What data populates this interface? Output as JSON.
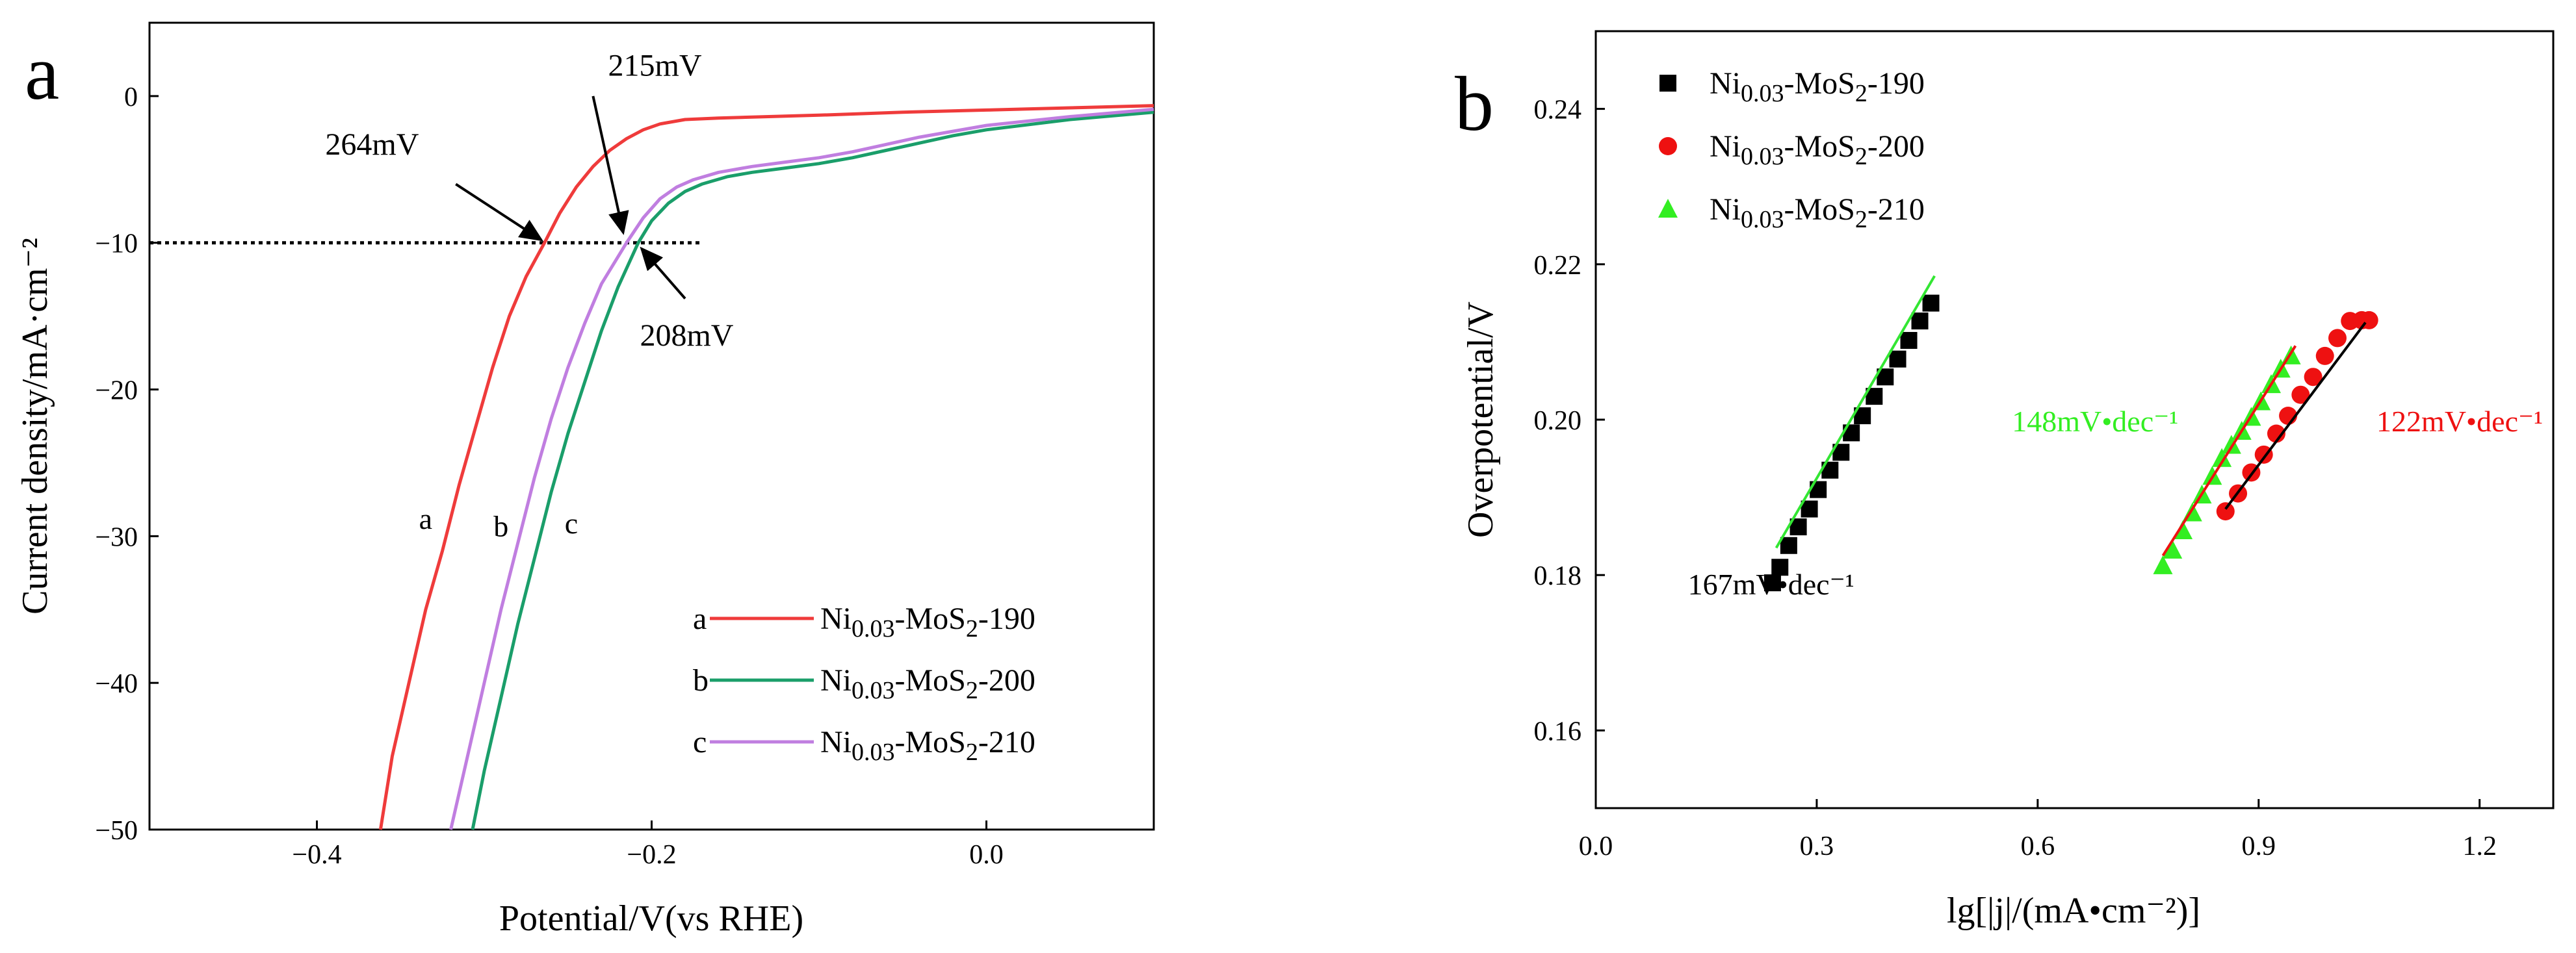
{
  "chart_data": [
    {
      "panel_label": "a",
      "type": "line",
      "xlabel": "Potential/V(vs RHE)",
      "ylabel": "Current density/mA·cm⁻²",
      "xlim": [
        -0.5,
        0.1
      ],
      "ylim": [
        -50,
        5
      ],
      "xticks": [
        {
          "value": -0.4,
          "label": "−0.4"
        },
        {
          "value": -0.2,
          "label": "−0.2"
        },
        {
          "value": 0.0,
          "label": "0.0"
        }
      ],
      "yticks": [
        {
          "value": 0,
          "label": "0"
        },
        {
          "value": -10,
          "label": "−10"
        },
        {
          "value": -20,
          "label": "−20"
        },
        {
          "value": -30,
          "label": "−30"
        },
        {
          "value": -40,
          "label": "−40"
        },
        {
          "value": -50,
          "label": "−50"
        }
      ],
      "reference_line": {
        "y": -10,
        "x_from": -0.5,
        "x_to": -0.17,
        "style": "dotted"
      },
      "series": [
        {
          "key": "a",
          "name_base": "Ni",
          "name_sub": "0.03",
          "name_rest": "-MoS",
          "name_sub2": "2",
          "name_tail": "-190",
          "color": "#ef3b3b",
          "x": [
            -0.362,
            -0.355,
            -0.345,
            -0.335,
            -0.325,
            -0.315,
            -0.305,
            -0.295,
            -0.285,
            -0.275,
            -0.264,
            -0.255,
            -0.245,
            -0.235,
            -0.225,
            -0.215,
            -0.205,
            -0.195,
            -0.18,
            -0.16,
            -0.13,
            -0.1,
            -0.05,
            0.0,
            0.05,
            0.1
          ],
          "y": [
            -50,
            -45,
            -40,
            -35,
            -31,
            -26.5,
            -22.5,
            -18.5,
            -15,
            -12.3,
            -10,
            -8,
            -6.2,
            -4.8,
            -3.7,
            -2.9,
            -2.3,
            -1.9,
            -1.6,
            -1.5,
            -1.4,
            -1.3,
            -1.1,
            -0.95,
            -0.8,
            -0.65
          ]
        },
        {
          "key": "b",
          "name_base": "Ni",
          "name_sub": "0.03",
          "name_rest": "-MoS",
          "name_sub2": "2",
          "name_tail": "-200",
          "color": "#1a9e6a",
          "x": [
            -0.307,
            -0.3,
            -0.29,
            -0.28,
            -0.27,
            -0.26,
            -0.25,
            -0.24,
            -0.23,
            -0.22,
            -0.208,
            -0.2,
            -0.19,
            -0.18,
            -0.17,
            -0.155,
            -0.14,
            -0.12,
            -0.1,
            -0.08,
            -0.06,
            -0.04,
            -0.02,
            0.0,
            0.05,
            0.1
          ],
          "y": [
            -50,
            -46,
            -41,
            -36,
            -31.5,
            -27,
            -23,
            -19.5,
            -16,
            -13,
            -10,
            -8.5,
            -7.3,
            -6.5,
            -6,
            -5.5,
            -5.2,
            -4.9,
            -4.6,
            -4.2,
            -3.7,
            -3.2,
            -2.7,
            -2.3,
            -1.6,
            -1.1
          ]
        },
        {
          "key": "c",
          "name_base": "Ni",
          "name_sub": "0.03",
          "name_rest": "-MoS",
          "name_sub2": "2",
          "name_tail": "-210",
          "color": "#c07ee0",
          "x": [
            -0.32,
            -0.31,
            -0.3,
            -0.29,
            -0.28,
            -0.27,
            -0.26,
            -0.25,
            -0.24,
            -0.23,
            -0.215,
            -0.205,
            -0.195,
            -0.185,
            -0.175,
            -0.16,
            -0.14,
            -0.12,
            -0.1,
            -0.08,
            -0.06,
            -0.04,
            -0.02,
            0.0,
            0.05,
            0.1
          ],
          "y": [
            -50,
            -45,
            -40,
            -35,
            -30.5,
            -26,
            -22,
            -18.5,
            -15.5,
            -12.8,
            -10,
            -8.3,
            -7,
            -6.2,
            -5.7,
            -5.2,
            -4.8,
            -4.5,
            -4.2,
            -3.8,
            -3.3,
            -2.8,
            -2.4,
            -2,
            -1.4,
            -0.9
          ]
        }
      ],
      "curve_labels": [
        {
          "key": "a",
          "text": "a",
          "x": -0.335,
          "y": -29.5
        },
        {
          "key": "b",
          "text": "b",
          "x": -0.29,
          "y": -30
        },
        {
          "key": "c",
          "text": "c",
          "x": -0.248,
          "y": -29.8
        }
      ],
      "annotations": [
        {
          "text": "264mV",
          "text_x": -0.395,
          "text_y": -4,
          "arrow_from_x": -0.317,
          "arrow_from_y": -6.0,
          "arrow_to_x": -0.266,
          "arrow_to_y": -9.8
        },
        {
          "text": "215mV",
          "text_x": -0.226,
          "text_y": 1.4,
          "arrow_from_x": -0.235,
          "arrow_from_y": 0.0,
          "arrow_to_x": -0.217,
          "arrow_to_y": -9.3
        },
        {
          "text": "208mV",
          "text_x": -0.207,
          "text_y": -17,
          "arrow_from_x": -0.18,
          "arrow_from_y": -13.8,
          "arrow_to_x": -0.206,
          "arrow_to_y": -10.4
        }
      ],
      "legend": {
        "placement": "bottom-right"
      }
    },
    {
      "panel_label": "b",
      "type": "scatter",
      "xlabel": "lg[|j|/(mA•cm⁻²)]",
      "ylabel": "Overpotential/V",
      "xlim": [
        0.0,
        1.3
      ],
      "ylim": [
        0.15,
        0.25
      ],
      "xticks": [
        {
          "value": 0.0,
          "label": "0.0"
        },
        {
          "value": 0.3,
          "label": "0.3"
        },
        {
          "value": 0.6,
          "label": "0.6"
        },
        {
          "value": 0.9,
          "label": "0.9"
        },
        {
          "value": 1.2,
          "label": "1.2"
        }
      ],
      "yticks": [
        {
          "value": 0.16,
          "label": "0.16"
        },
        {
          "value": 0.18,
          "label": "0.18"
        },
        {
          "value": 0.2,
          "label": "0.20"
        },
        {
          "value": 0.22,
          "label": "0.22"
        },
        {
          "value": 0.24,
          "label": "0.24"
        }
      ],
      "series": [
        {
          "key": "s190",
          "marker": "square",
          "name_base": "Ni",
          "name_sub": "0.03",
          "name_rest": "-MoS",
          "name_sub2": "2",
          "name_tail": "-190",
          "color": "#000000",
          "fit_color": "#33e633",
          "x": [
            0.24,
            0.25,
            0.262,
            0.275,
            0.29,
            0.302,
            0.318,
            0.333,
            0.347,
            0.362,
            0.378,
            0.393,
            0.41,
            0.425,
            0.44,
            0.455
          ],
          "y": [
            0.179,
            0.181,
            0.1838,
            0.1862,
            0.1885,
            0.191,
            0.1935,
            0.1958,
            0.1983,
            0.2005,
            0.203,
            0.2055,
            0.2078,
            0.2102,
            0.2127,
            0.215
          ],
          "fit": {
            "x": [
              0.245,
              0.46
            ],
            "y": [
              0.1835,
              0.2185
            ]
          },
          "slope_label": "167mV•dec⁻¹",
          "slope_label_pos": {
            "x": 0.125,
            "y": 0.1775
          },
          "slope_label_color": "#000000"
        },
        {
          "key": "s200",
          "marker": "circle",
          "name_base": "Ni",
          "name_sub": "0.03",
          "name_rest": "-MoS",
          "name_sub2": "2",
          "name_tail": "-200",
          "color": "#ee1111",
          "fit_color": "#000000",
          "x": [
            0.855,
            0.872,
            0.89,
            0.907,
            0.924,
            0.94,
            0.957,
            0.974,
            0.99,
            1.007,
            1.024,
            1.04,
            1.05
          ],
          "y": [
            0.1882,
            0.1905,
            0.1932,
            0.1955,
            0.1982,
            0.2005,
            0.2032,
            0.2055,
            0.2082,
            0.2105,
            0.2127,
            0.2128,
            0.2128
          ],
          "fit": {
            "x": [
              0.855,
              1.045
            ],
            "y": [
              0.1885,
              0.2125
            ]
          },
          "slope_label": "122mV•dec⁻¹",
          "slope_label_pos": {
            "x": 1.06,
            "y": 0.1985
          },
          "slope_label_color": "#ee1111"
        },
        {
          "key": "s210",
          "marker": "triangle",
          "name_base": "Ni",
          "name_sub": "0.03",
          "name_rest": "-MoS",
          "name_sub2": "2",
          "name_tail": "-210",
          "color": "#33ee22",
          "fit_color": "#ee1111",
          "x": [
            0.77,
            0.783,
            0.797,
            0.81,
            0.823,
            0.837,
            0.85,
            0.863,
            0.877,
            0.89,
            0.903,
            0.917,
            0.93,
            0.944
          ],
          "y": [
            0.1812,
            0.1832,
            0.1857,
            0.188,
            0.1903,
            0.1927,
            0.195,
            0.1967,
            0.1985,
            0.2003,
            0.2023,
            0.2045,
            0.2065,
            0.2082
          ],
          "fit": {
            "x": [
              0.77,
              0.95
            ],
            "y": [
              0.1825,
              0.2095
            ]
          },
          "slope_label": "148mV•dec⁻¹",
          "slope_label_pos": {
            "x": 0.565,
            "y": 0.1985
          },
          "slope_label_color": "#33ee22"
        }
      ],
      "legend": {
        "placement": "top-left"
      }
    }
  ]
}
